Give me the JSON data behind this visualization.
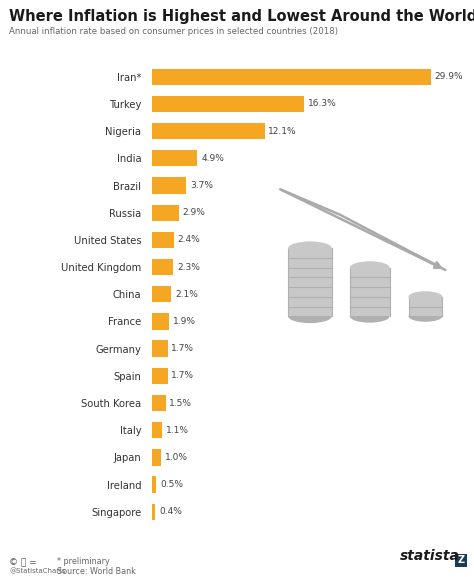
{
  "title": "Where Inflation is Highest and Lowest Around the World",
  "subtitle": "Annual inflation rate based on consumer prices in selected countries (2018)",
  "countries": [
    "Iran*",
    "Turkey",
    "Nigeria",
    "India",
    "Brazil",
    "Russia",
    "United States",
    "United Kingdom",
    "China",
    "France",
    "Germany",
    "Spain",
    "South Korea",
    "Italy",
    "Japan",
    "Ireland",
    "Singapore"
  ],
  "values": [
    29.9,
    16.3,
    12.1,
    4.9,
    3.7,
    2.9,
    2.4,
    2.3,
    2.1,
    1.9,
    1.7,
    1.7,
    1.5,
    1.1,
    1.0,
    0.5,
    0.4
  ],
  "bar_color": "#F5A623",
  "bg_color": "#ffffff",
  "title_color": "#1a1a1a",
  "subtitle_color": "#666666",
  "label_color": "#333333",
  "value_color": "#444444",
  "coin_color": "#c8c8c8",
  "coin_edge_color": "#b0b0b0",
  "arrow_color": "#aaaaaa",
  "xlim": [
    0,
    33
  ],
  "bar_height": 0.6,
  "figsize": [
    4.74,
    5.77
  ],
  "dpi": 100
}
